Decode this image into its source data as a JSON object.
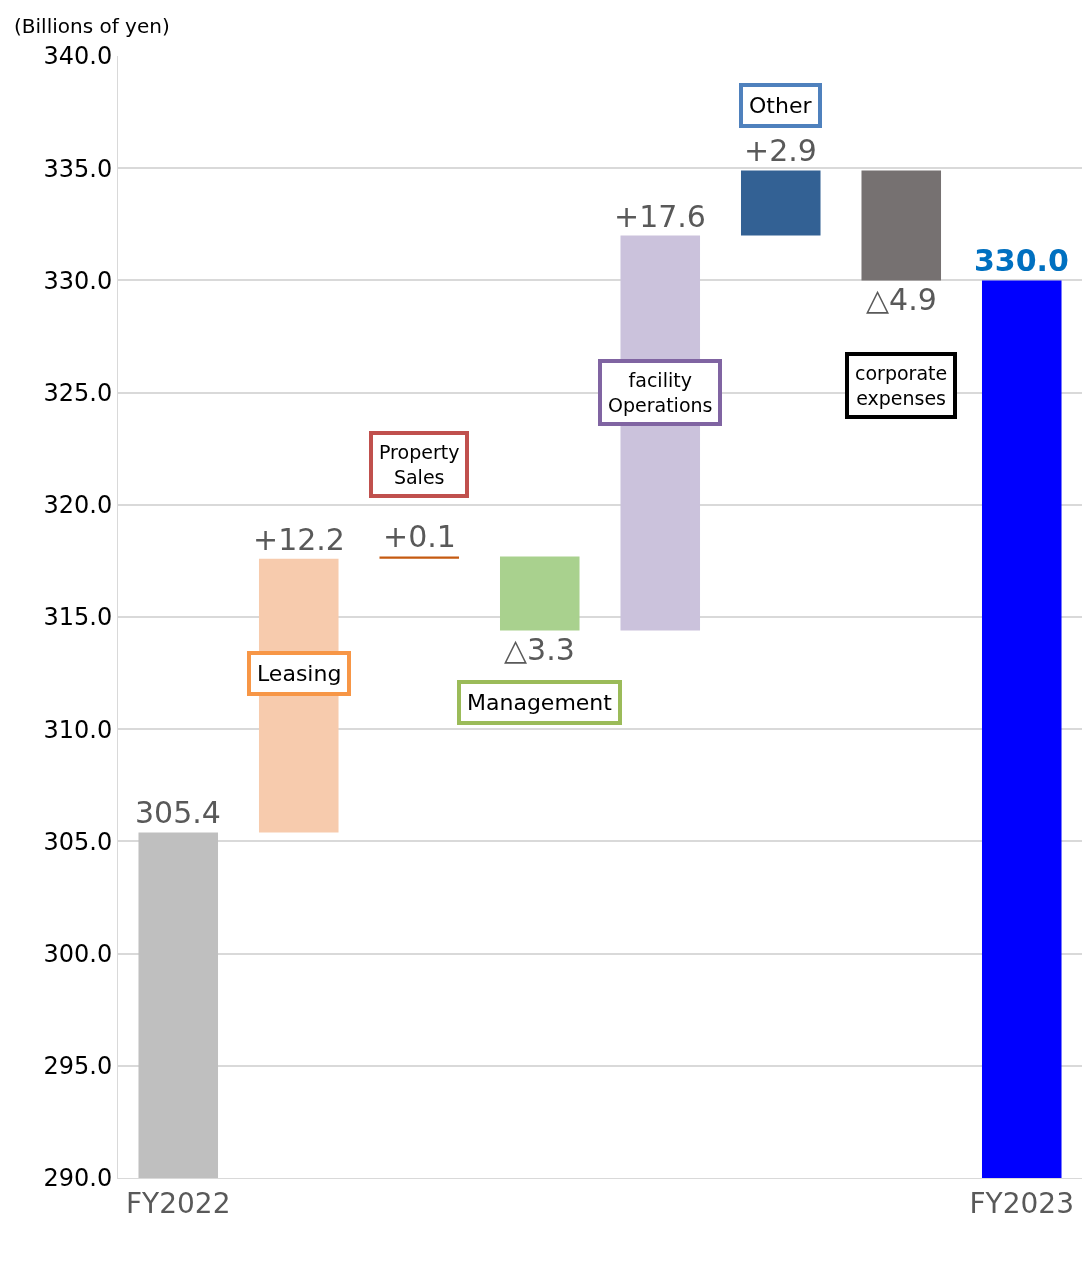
{
  "chart_data": {
    "type": "bar",
    "ylabel": "(Billions of yen)",
    "categories": [
      "FY2022",
      null,
      null,
      null,
      null,
      null,
      null,
      "FY2023"
    ],
    "values": [
      15.4,
      12.2,
      0.1,
      -3.3,
      17.6,
      2.9,
      -4.9,
      40.0
    ],
    "base": [
      290.0,
      305.4,
      317.6,
      317.7,
      314.4,
      332.0,
      334.9,
      290.0
    ],
    "colors": [
      "#bfbfbf",
      "#f7cbad",
      "#c55a11",
      "#a9d18e",
      "#cbc2dc",
      "#336194",
      "#767171",
      "#0000ff"
    ],
    "value_labels": [
      "305.4",
      "+12.2",
      "+0.1",
      "△3.3",
      "+17.6",
      "+2.9",
      "△4.9",
      "330.0"
    ],
    "annotations": [
      "Leasing",
      "Property Sales",
      "Management",
      "facility Operations",
      "Other",
      "corporate expenses"
    ],
    "ylim": [
      290,
      340
    ],
    "yticks": [
      {
        "value": 290,
        "label": "290.0"
      },
      {
        "value": 295,
        "label": "295.0"
      },
      {
        "value": 300,
        "label": "300.0"
      },
      {
        "value": 305,
        "label": "305.0"
      },
      {
        "value": 310,
        "label": "310.0"
      },
      {
        "value": 315,
        "label": "315.0"
      },
      {
        "value": 320,
        "label": "320.0"
      },
      {
        "value": 325,
        "label": "325.0"
      },
      {
        "value": 330,
        "label": "330.0"
      },
      {
        "value": 335,
        "label": "335.0"
      },
      {
        "value": 340,
        "label": "340.0"
      }
    ],
    "grid": "y"
  }
}
